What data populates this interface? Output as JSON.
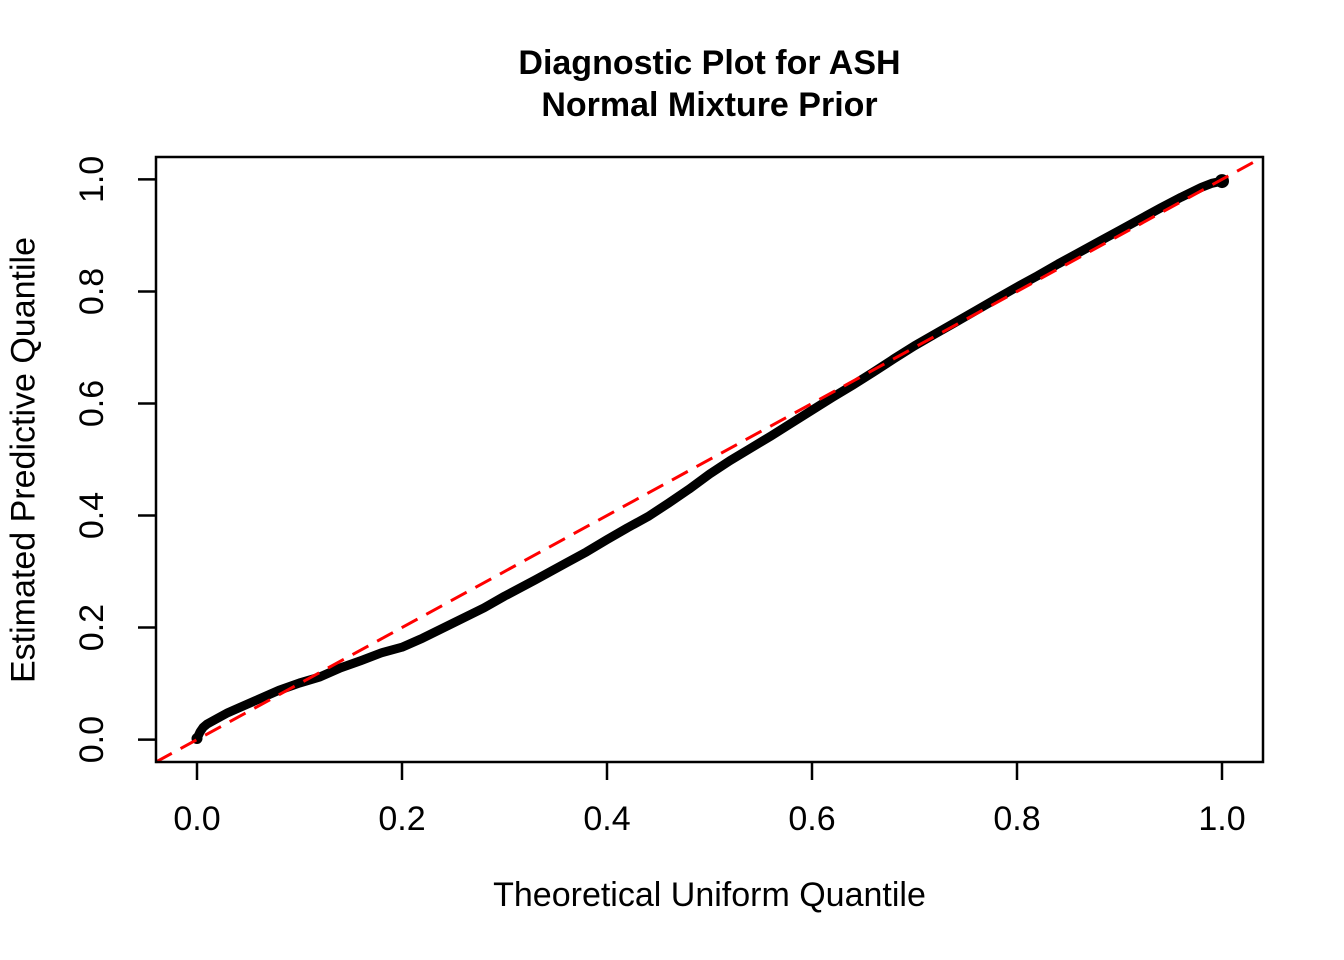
{
  "figure": {
    "title_line1": "Diagnostic Plot for ASH",
    "title_line2": "Normal Mixture Prior",
    "xlabel": "Theoretical Uniform Quantile",
    "ylabel": "Estimated Predictive Quantile"
  },
  "chart_data": {
    "type": "scatter",
    "title": "Diagnostic Plot for ASH\nNormal Mixture Prior",
    "xlabel": "Theoretical Uniform Quantile",
    "ylabel": "Estimated Predictive Quantile",
    "xlim": [
      -0.04,
      1.04
    ],
    "ylim": [
      -0.04,
      1.04
    ],
    "x_ticks": [
      0.0,
      0.2,
      0.4,
      0.6,
      0.8,
      1.0
    ],
    "y_ticks": [
      0.0,
      0.2,
      0.4,
      0.6,
      0.8,
      1.0
    ],
    "grid": false,
    "legend": "none",
    "colors": {
      "points": "#000000",
      "reference_line": "#ff0000",
      "axis": "#000000"
    },
    "series": [
      {
        "name": "empirical-predictive-quantiles",
        "style": "thick-point-curve",
        "color": "#000000",
        "points": [
          [
            0.0,
            0.002
          ],
          [
            0.003,
            0.014
          ],
          [
            0.006,
            0.022
          ],
          [
            0.01,
            0.028
          ],
          [
            0.02,
            0.038
          ],
          [
            0.03,
            0.048
          ],
          [
            0.04,
            0.056
          ],
          [
            0.06,
            0.072
          ],
          [
            0.08,
            0.088
          ],
          [
            0.1,
            0.101
          ],
          [
            0.12,
            0.112
          ],
          [
            0.14,
            0.128
          ],
          [
            0.16,
            0.141
          ],
          [
            0.18,
            0.155
          ],
          [
            0.2,
            0.165
          ],
          [
            0.22,
            0.181
          ],
          [
            0.25,
            0.208
          ],
          [
            0.28,
            0.235
          ],
          [
            0.3,
            0.256
          ],
          [
            0.33,
            0.285
          ],
          [
            0.36,
            0.315
          ],
          [
            0.38,
            0.335
          ],
          [
            0.4,
            0.357
          ],
          [
            0.42,
            0.378
          ],
          [
            0.44,
            0.398
          ],
          [
            0.46,
            0.422
          ],
          [
            0.48,
            0.447
          ],
          [
            0.5,
            0.474
          ],
          [
            0.52,
            0.498
          ],
          [
            0.54,
            0.52
          ],
          [
            0.56,
            0.542
          ],
          [
            0.58,
            0.565
          ],
          [
            0.6,
            0.588
          ],
          [
            0.62,
            0.611
          ],
          [
            0.64,
            0.633
          ],
          [
            0.66,
            0.656
          ],
          [
            0.68,
            0.68
          ],
          [
            0.7,
            0.703
          ],
          [
            0.72,
            0.724
          ],
          [
            0.74,
            0.745
          ],
          [
            0.76,
            0.766
          ],
          [
            0.78,
            0.787
          ],
          [
            0.8,
            0.808
          ],
          [
            0.82,
            0.828
          ],
          [
            0.84,
            0.849
          ],
          [
            0.86,
            0.869
          ],
          [
            0.88,
            0.889
          ],
          [
            0.9,
            0.909
          ],
          [
            0.92,
            0.929
          ],
          [
            0.94,
            0.949
          ],
          [
            0.96,
            0.968
          ],
          [
            0.98,
            0.986
          ],
          [
            0.99,
            0.993
          ],
          [
            1.0,
            0.997
          ]
        ]
      },
      {
        "name": "reference-line-y-equals-x",
        "style": "dashed-line",
        "color": "#ff0000",
        "points": [
          [
            -0.04,
            -0.04
          ],
          [
            1.04,
            1.04
          ]
        ]
      }
    ]
  }
}
